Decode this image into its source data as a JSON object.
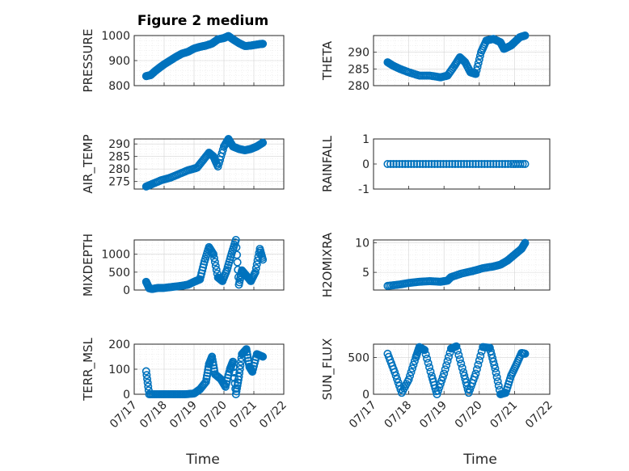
{
  "figure": {
    "title": "Figure 2 medium",
    "xlabel": "Time",
    "x_ticks": [
      "07/17",
      "07/18",
      "07/19",
      "07/20",
      "07/21",
      "07/22"
    ],
    "marker_color": "#0072BD"
  },
  "chart_data": [
    {
      "type": "scatter",
      "ylabel": "PRESSURE",
      "xlim": [
        "07/17",
        "07/22"
      ],
      "ylim": [
        800,
        1000
      ],
      "yticks": [
        800,
        900,
        1000
      ],
      "grid": "on",
      "marker": "circle",
      "points": [
        [
          0.4,
          838
        ],
        [
          0.55,
          842
        ],
        [
          0.7,
          858
        ],
        [
          0.85,
          872
        ],
        [
          1.0,
          885
        ],
        [
          1.2,
          900
        ],
        [
          1.4,
          915
        ],
        [
          1.6,
          928
        ],
        [
          1.8,
          935
        ],
        [
          2.0,
          948
        ],
        [
          2.2,
          955
        ],
        [
          2.4,
          960
        ],
        [
          2.6,
          968
        ],
        [
          2.8,
          985
        ],
        [
          3.0,
          990
        ],
        [
          3.15,
          998
        ],
        [
          3.3,
          985
        ],
        [
          3.5,
          970
        ],
        [
          3.7,
          958
        ],
        [
          3.9,
          960
        ],
        [
          4.05,
          963
        ],
        [
          4.2,
          966
        ],
        [
          4.3,
          967
        ]
      ]
    },
    {
      "type": "scatter",
      "ylabel": "THETA",
      "xlim": [
        "07/17",
        "07/22"
      ],
      "ylim": [
        280,
        295
      ],
      "yticks": [
        280,
        285,
        290
      ],
      "grid": "on",
      "marker": "circle",
      "points": [
        [
          0.4,
          287
        ],
        [
          0.55,
          286
        ],
        [
          0.75,
          285
        ],
        [
          1.0,
          284
        ],
        [
          1.3,
          283
        ],
        [
          1.6,
          283
        ],
        [
          1.9,
          282.5
        ],
        [
          2.1,
          283
        ],
        [
          2.3,
          286
        ],
        [
          2.45,
          288.5
        ],
        [
          2.6,
          287
        ],
        [
          2.75,
          284
        ],
        [
          2.9,
          283.5
        ],
        [
          3.05,
          290
        ],
        [
          3.2,
          293.5
        ],
        [
          3.4,
          294
        ],
        [
          3.6,
          293
        ],
        [
          3.7,
          291
        ],
        [
          3.9,
          292
        ],
        [
          4.0,
          293
        ],
        [
          4.15,
          294.5
        ],
        [
          4.3,
          295
        ]
      ]
    },
    {
      "type": "scatter",
      "ylabel": "AIR_TEMP",
      "xlim": [
        "07/17",
        "07/22"
      ],
      "ylim": [
        272,
        292
      ],
      "yticks": [
        275,
        280,
        285,
        290
      ],
      "grid": "on",
      "marker": "circle",
      "points": [
        [
          0.4,
          273
        ],
        [
          0.6,
          274
        ],
        [
          0.9,
          275.5
        ],
        [
          1.2,
          276.5
        ],
        [
          1.5,
          278
        ],
        [
          1.8,
          279.5
        ],
        [
          2.1,
          280.5
        ],
        [
          2.3,
          283.5
        ],
        [
          2.5,
          286.5
        ],
        [
          2.65,
          285
        ],
        [
          2.8,
          281
        ],
        [
          3.0,
          289
        ],
        [
          3.15,
          292
        ],
        [
          3.3,
          289
        ],
        [
          3.5,
          288
        ],
        [
          3.7,
          287.5
        ],
        [
          3.9,
          288
        ],
        [
          4.1,
          289
        ],
        [
          4.3,
          290.5
        ]
      ]
    },
    {
      "type": "scatter",
      "ylabel": "RAINFALL",
      "xlim": [
        "07/17",
        "07/22"
      ],
      "ylim": [
        -1,
        1
      ],
      "yticks": [
        -1,
        0,
        1
      ],
      "grid": "off",
      "marker": "circle",
      "points": [
        [
          0.4,
          0
        ],
        [
          0.9,
          0
        ],
        [
          1.4,
          0
        ],
        [
          1.9,
          0
        ],
        [
          2.4,
          0
        ],
        [
          2.9,
          0
        ],
        [
          3.4,
          0
        ],
        [
          3.9,
          0
        ],
        [
          4.3,
          0
        ]
      ]
    },
    {
      "type": "scatter",
      "ylabel": "MIXDEPTH",
      "xlim": [
        "07/17",
        "07/22"
      ],
      "ylim": [
        0,
        1400
      ],
      "yticks": [
        0,
        500,
        1000
      ],
      "grid": "on",
      "marker": "circle",
      "points": [
        [
          0.4,
          230
        ],
        [
          0.5,
          50
        ],
        [
          0.6,
          30
        ],
        [
          0.8,
          60
        ],
        [
          1.0,
          60
        ],
        [
          1.3,
          90
        ],
        [
          1.6,
          120
        ],
        [
          1.8,
          150
        ],
        [
          2.0,
          230
        ],
        [
          2.2,
          300
        ],
        [
          2.35,
          800
        ],
        [
          2.5,
          1200
        ],
        [
          2.65,
          1000
        ],
        [
          2.8,
          350
        ],
        [
          2.95,
          250
        ],
        [
          3.1,
          560
        ],
        [
          3.25,
          1000
        ],
        [
          3.4,
          1400
        ],
        [
          3.5,
          150
        ],
        [
          3.6,
          550
        ],
        [
          3.75,
          400
        ],
        [
          3.9,
          250
        ],
        [
          4.05,
          500
        ],
        [
          4.2,
          1150
        ],
        [
          4.3,
          850
        ]
      ]
    },
    {
      "type": "scatter",
      "ylabel": "H2OMIXRA",
      "xlim": [
        "07/17",
        "07/22"
      ],
      "ylim": [
        2,
        10.5
      ],
      "yticks": [
        5,
        10
      ],
      "grid": "on",
      "marker": "circle",
      "points": [
        [
          0.4,
          2.7
        ],
        [
          0.7,
          2.9
        ],
        [
          1.0,
          3.2
        ],
        [
          1.3,
          3.4
        ],
        [
          1.6,
          3.5
        ],
        [
          1.9,
          3.4
        ],
        [
          2.1,
          3.6
        ],
        [
          2.2,
          4.2
        ],
        [
          2.5,
          4.8
        ],
        [
          2.8,
          5.2
        ],
        [
          3.1,
          5.7
        ],
        [
          3.4,
          6.0
        ],
        [
          3.6,
          6.3
        ],
        [
          3.8,
          7.0
        ],
        [
          4.0,
          8.0
        ],
        [
          4.2,
          9.0
        ],
        [
          4.3,
          10.0
        ]
      ]
    },
    {
      "type": "scatter",
      "ylabel": "TERR_MSL",
      "xlim": [
        "07/17",
        "07/22"
      ],
      "ylim": [
        0,
        200
      ],
      "yticks": [
        0,
        100,
        200
      ],
      "grid": "on",
      "marker": "circle",
      "points": [
        [
          0.4,
          92
        ],
        [
          0.5,
          0
        ],
        [
          0.8,
          0
        ],
        [
          1.1,
          0
        ],
        [
          1.4,
          0
        ],
        [
          1.7,
          0
        ],
        [
          2.0,
          3
        ],
        [
          2.2,
          20
        ],
        [
          2.4,
          50
        ],
        [
          2.5,
          120
        ],
        [
          2.6,
          150
        ],
        [
          2.7,
          80
        ],
        [
          2.9,
          60
        ],
        [
          3.05,
          30
        ],
        [
          3.2,
          100
        ],
        [
          3.3,
          130
        ],
        [
          3.4,
          0
        ],
        [
          3.5,
          70
        ],
        [
          3.6,
          160
        ],
        [
          3.75,
          180
        ],
        [
          3.85,
          110
        ],
        [
          3.95,
          90
        ],
        [
          4.1,
          160
        ],
        [
          4.3,
          150
        ]
      ]
    },
    {
      "type": "scatter",
      "ylabel": "SUN_FLUX",
      "xlim": [
        "07/17",
        "07/22"
      ],
      "ylim": [
        0,
        680
      ],
      "yticks": [
        0,
        500
      ],
      "grid": "on",
      "marker": "circle",
      "points": [
        [
          0.4,
          550
        ],
        [
          0.6,
          300
        ],
        [
          0.8,
          20
        ],
        [
          1.0,
          200
        ],
        [
          1.2,
          500
        ],
        [
          1.3,
          640
        ],
        [
          1.45,
          600
        ],
        [
          1.65,
          250
        ],
        [
          1.8,
          0
        ],
        [
          2.0,
          280
        ],
        [
          2.2,
          620
        ],
        [
          2.35,
          650
        ],
        [
          2.55,
          300
        ],
        [
          2.7,
          20
        ],
        [
          2.9,
          280
        ],
        [
          3.1,
          640
        ],
        [
          3.3,
          630
        ],
        [
          3.45,
          350
        ],
        [
          3.6,
          0
        ],
        [
          3.75,
          20
        ],
        [
          3.9,
          250
        ],
        [
          4.05,
          400
        ],
        [
          4.2,
          560
        ],
        [
          4.3,
          550
        ]
      ]
    }
  ]
}
